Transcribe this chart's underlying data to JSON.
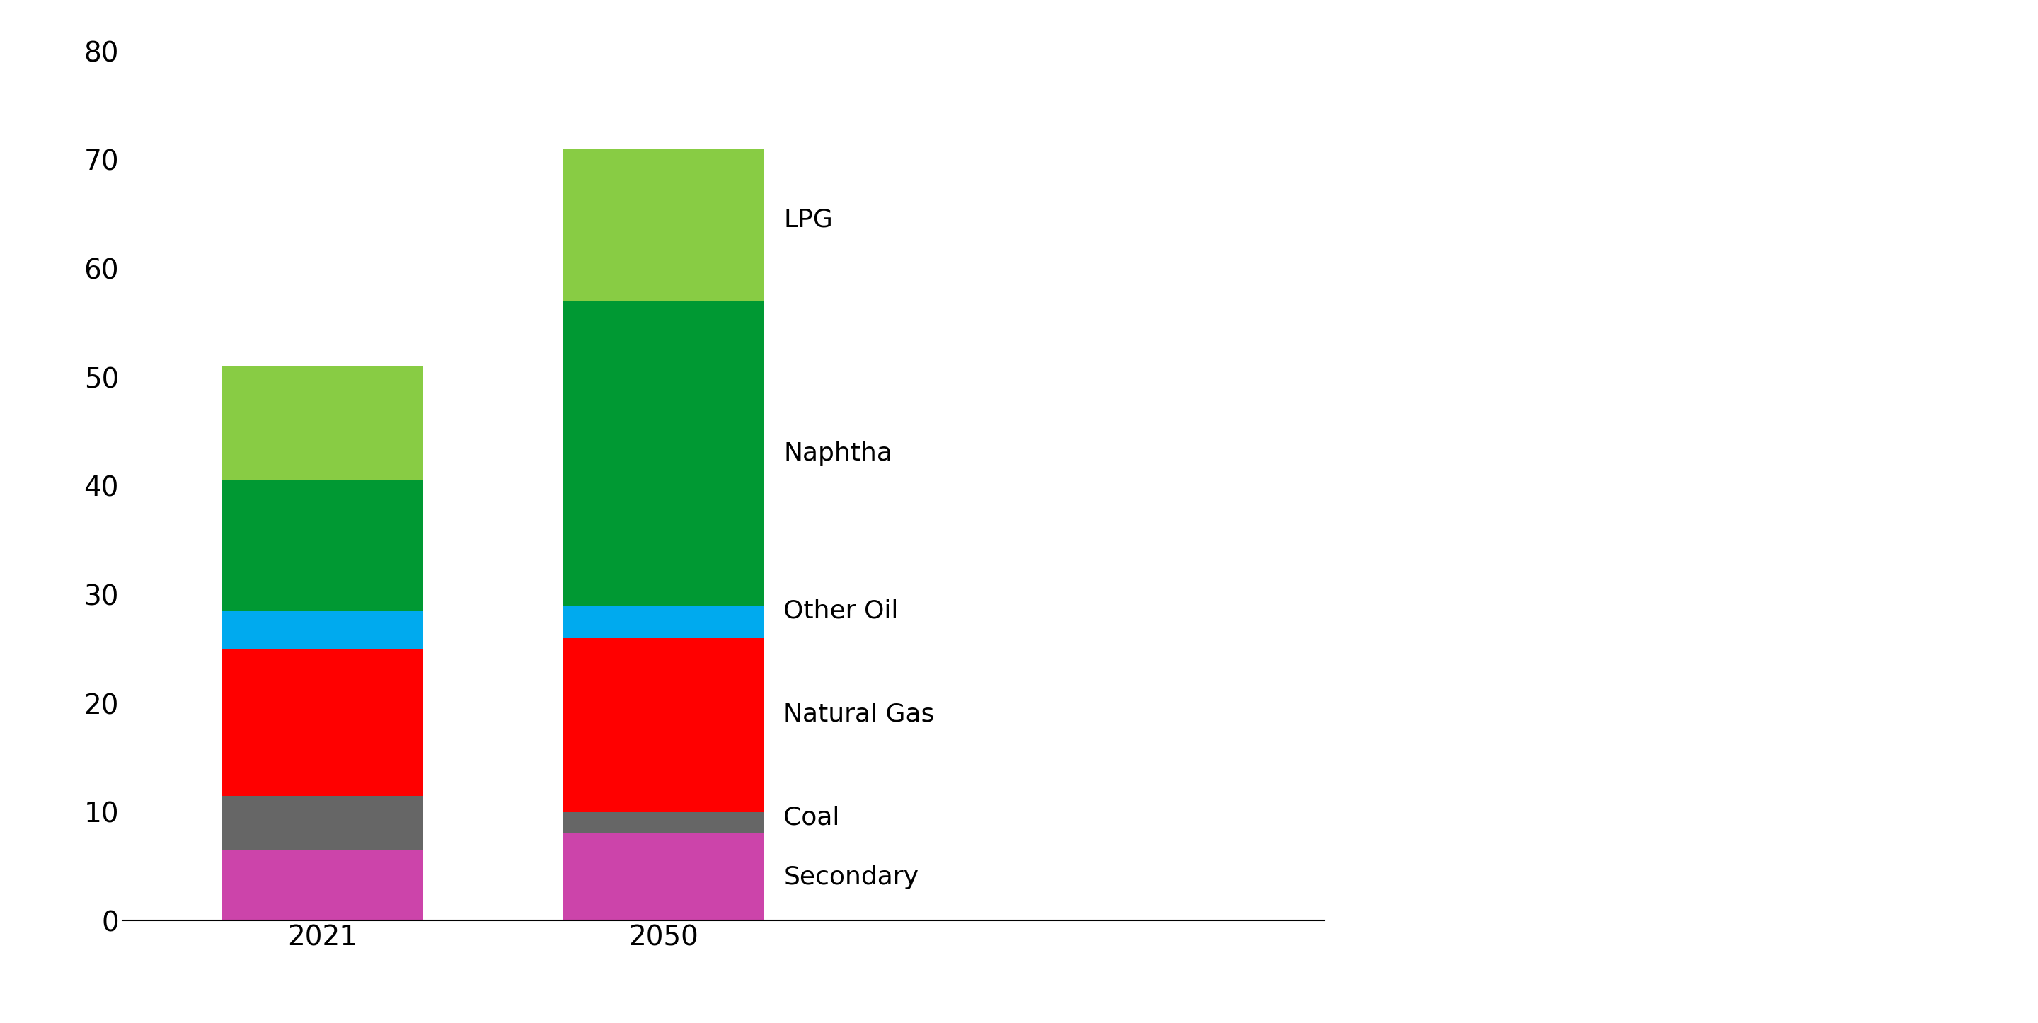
{
  "categories": [
    "2021",
    "2050"
  ],
  "series": [
    {
      "name": "Secondary",
      "values": [
        6.5,
        8.0
      ],
      "color": "#CC44AA"
    },
    {
      "name": "Coal",
      "values": [
        5.0,
        2.0
      ],
      "color": "#666666"
    },
    {
      "name": "Natural Gas",
      "values": [
        13.5,
        16.0
      ],
      "color": "#FF0000"
    },
    {
      "name": "Other Oil",
      "values": [
        3.5,
        3.0
      ],
      "color": "#00AAEE"
    },
    {
      "name": "Naphtha",
      "values": [
        12.0,
        28.0
      ],
      "color": "#009933"
    },
    {
      "name": "LPG",
      "values": [
        10.5,
        14.0
      ],
      "color": "#88CC44"
    }
  ],
  "ylim": [
    0,
    80
  ],
  "yticks": [
    0,
    10,
    20,
    30,
    40,
    50,
    60,
    70,
    80
  ],
  "bar_width": 0.5,
  "x_positions": [
    0.0,
    0.85
  ],
  "background_color": "#FFFFFF",
  "tick_fontsize": 28,
  "annotation_fontsize": 26,
  "annotations": [
    {
      "text": "LPG",
      "y": 64.5
    },
    {
      "text": "Naphtha",
      "y": 43.0
    },
    {
      "text": "Other Oil",
      "y": 28.5
    },
    {
      "text": "Natural Gas",
      "y": 19.0
    },
    {
      "text": "Coal",
      "y": 9.5
    },
    {
      "text": "Secondary",
      "y": 4.0
    }
  ],
  "xlim": [
    -0.5,
    2.5
  ]
}
